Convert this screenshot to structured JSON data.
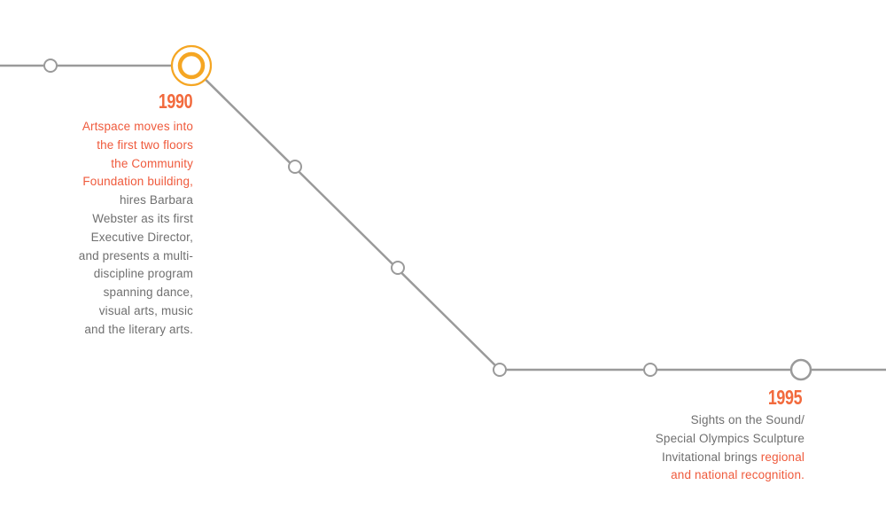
{
  "colors": {
    "line": "#9a9a9a",
    "node_fill": "#ffffff",
    "highlight_ring": "#f5a623",
    "year_text": "#f26a3d",
    "highlight_text": "#ef5a3c",
    "body_text": "#6f6f6f"
  },
  "milestones": [
    {
      "year": "1990",
      "description_lines": [
        {
          "text": "Artspace moves into",
          "highlight": true
        },
        {
          "text": "the first two floors",
          "highlight": true
        },
        {
          "text": "the Community",
          "highlight": true
        },
        {
          "text": "Foundation building,",
          "highlight": true
        },
        {
          "text": "hires Barbara",
          "highlight": false
        },
        {
          "text": "Webster as its first",
          "highlight": false
        },
        {
          "text": "Executive Director,",
          "highlight": false
        },
        {
          "text": "and presents a multi-",
          "highlight": false
        },
        {
          "text": "discipline program",
          "highlight": false
        },
        {
          "text": "spanning dance,",
          "highlight": false
        },
        {
          "text": "visual arts, music",
          "highlight": false
        },
        {
          "text": "and the literary arts.",
          "highlight": false
        }
      ]
    },
    {
      "year": "1995",
      "description_lines": [
        {
          "text": "Sights on the Sound/",
          "highlight": false
        },
        {
          "text": "Special Olympics Sculpture",
          "highlight": false
        },
        {
          "text": "Invitational brings ",
          "highlight": false,
          "inline_next": true
        },
        {
          "text": "regional",
          "highlight": true
        },
        {
          "text": "and national recognition.",
          "highlight": true
        }
      ]
    }
  ]
}
